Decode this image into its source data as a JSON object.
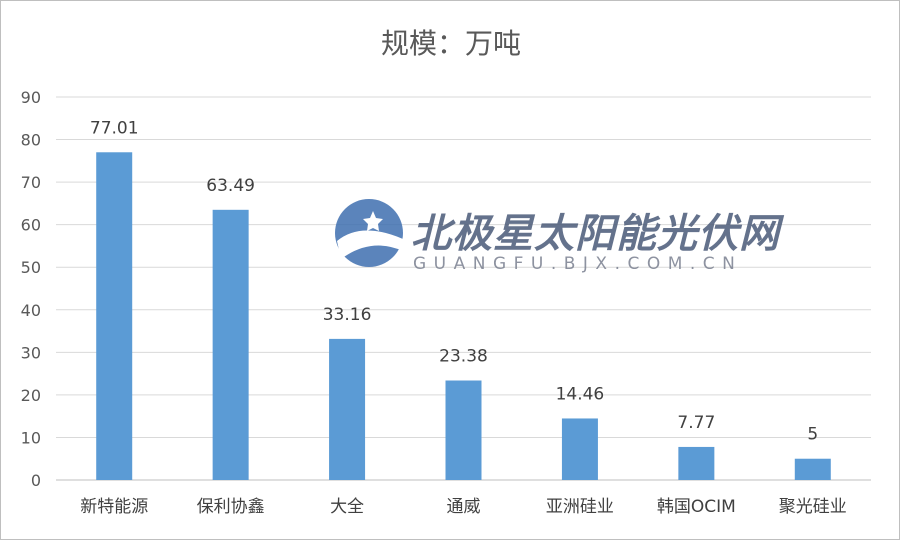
{
  "chart_data": {
    "type": "bar",
    "title": "规模：万吨",
    "xlabel": "",
    "ylabel": "",
    "categories": [
      "新特能源",
      "保利协鑫",
      "大全",
      "通威",
      "亚洲硅业",
      "韩国OCIM",
      "聚光硅业"
    ],
    "values": [
      77.01,
      63.49,
      33.16,
      23.38,
      14.46,
      7.77,
      5
    ],
    "data_labels": [
      "77.01",
      "63.49",
      "33.16",
      "23.38",
      "14.46",
      "7.77",
      "5"
    ],
    "ylim": [
      0,
      90
    ],
    "yticks": [
      0,
      10,
      20,
      30,
      40,
      50,
      60,
      70,
      80,
      90
    ],
    "grid": true,
    "legend": "none",
    "bar_color": "#5B9BD5"
  },
  "watermark": {
    "name": "北极星太阳能光伏网",
    "url_text": "GUANGFU.BJX.COM.CN",
    "color": "#4a5a78"
  }
}
